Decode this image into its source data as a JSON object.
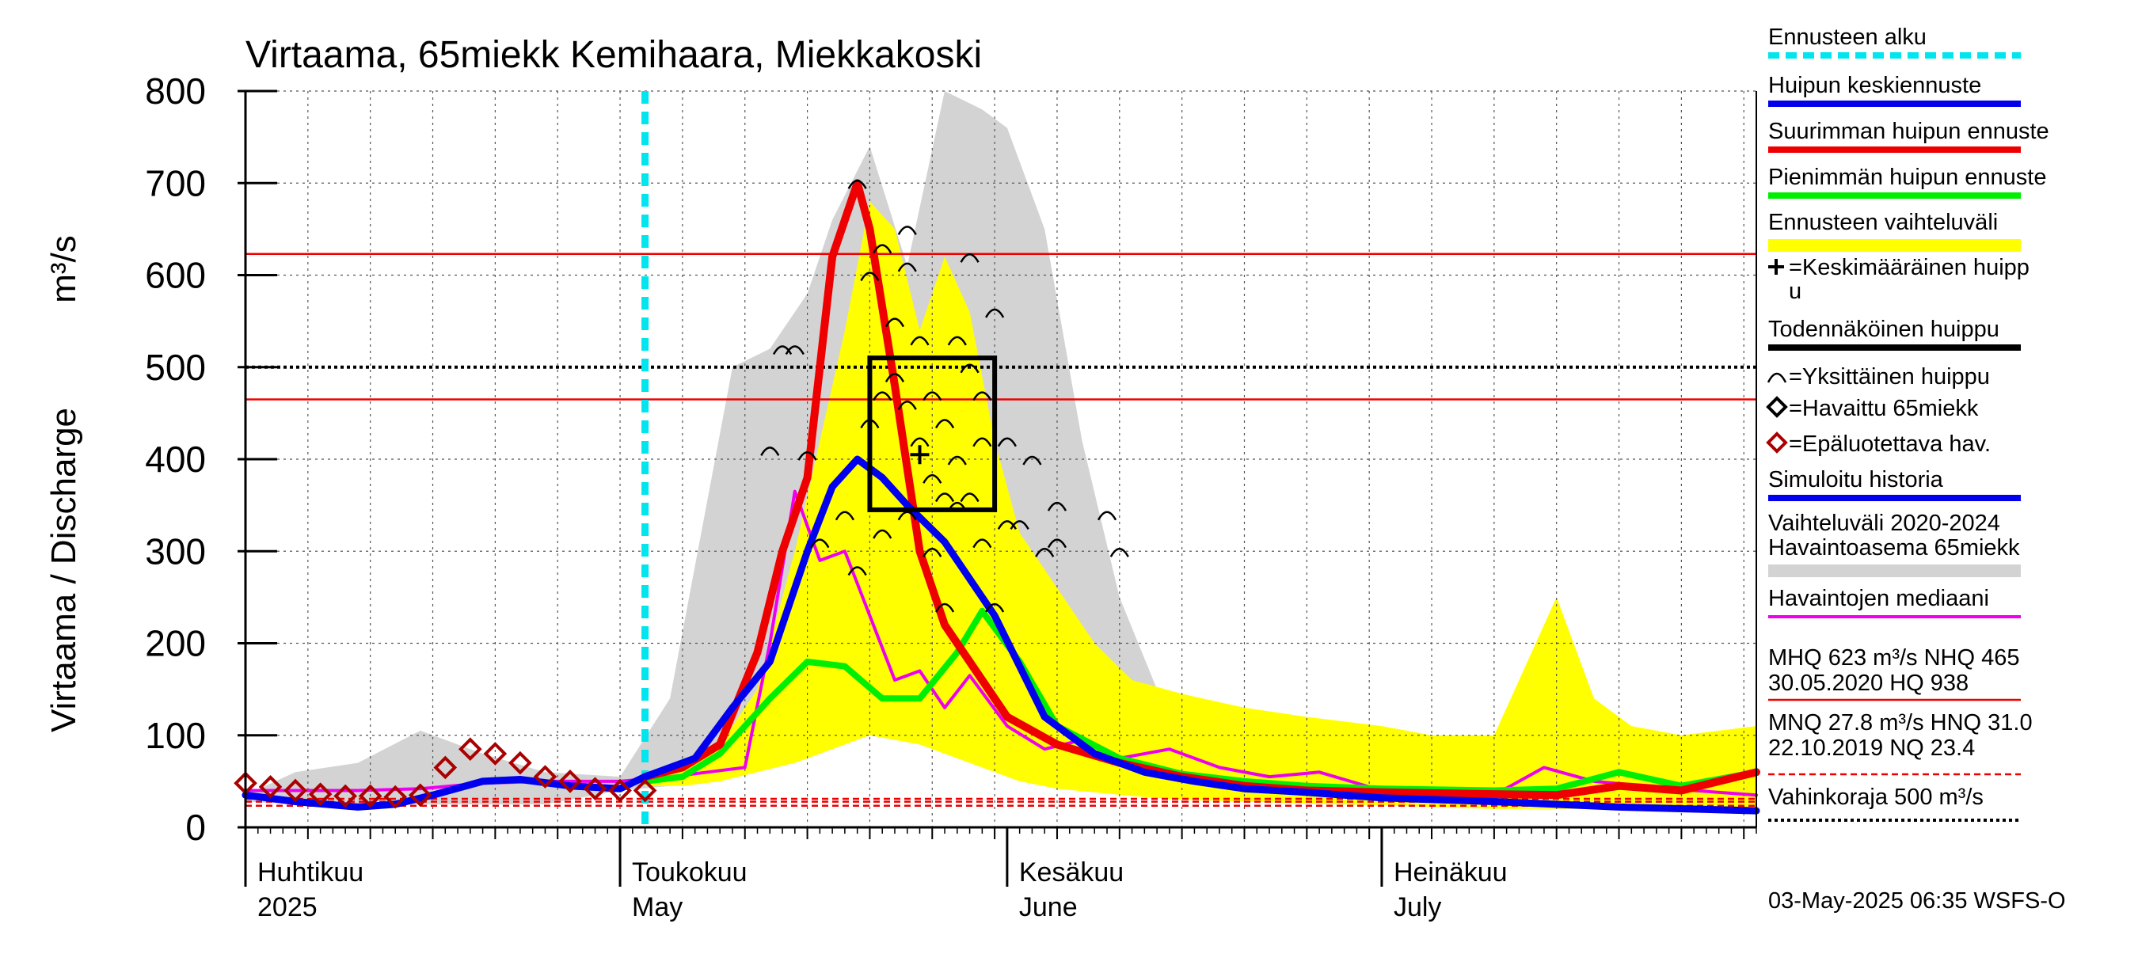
{
  "chart_data": {
    "type": "line",
    "title": "Virtaama, 65miekk Kemihaara, Miekkakoski",
    "ylabel": "Virtaama / Discharge",
    "yunit": "m³/s",
    "ylim": [
      0,
      800
    ],
    "yticks": [
      0,
      100,
      200,
      300,
      400,
      500,
      600,
      700,
      800
    ],
    "xlim": [
      "2025-04-01",
      "2025-07-31"
    ],
    "x_major": [
      {
        "date": "2025-04-01",
        "fi": "Huhtikuu",
        "en": "2025"
      },
      {
        "date": "2025-05-01",
        "fi": "Toukokuu",
        "en": "May"
      },
      {
        "date": "2025-06-01",
        "fi": "Kesäkuu",
        "en": "June"
      },
      {
        "date": "2025-07-01",
        "fi": "Heinäkuu",
        "en": "July"
      }
    ],
    "x_minor_step_days": 5,
    "grid": true,
    "legend_placement": "right",
    "forecast_start": "2025-05-03",
    "colors": {
      "forecast_start": "#00e5ee",
      "mean_peak_forecast": "#0000ee",
      "max_peak_forecast": "#ee0000",
      "min_peak_forecast": "#00ee00",
      "forecast_range": "#ffff00",
      "history_range": "#d3d3d3",
      "median": "#ee00ee",
      "observed": "#000000",
      "unreliable": "#aa0000",
      "reference": "#ee0000",
      "damage_limit": "#000000"
    },
    "reference_lines": [
      {
        "name": "MHQ",
        "value": 623,
        "style": "solid"
      },
      {
        "name": "NHQ",
        "value": 465,
        "style": "solid"
      },
      {
        "name": "Vahinkoraja",
        "value": 500,
        "style": "dotted"
      },
      {
        "name": "HNQ",
        "value": 31.0,
        "style": "dashed"
      },
      {
        "name": "MNQ",
        "value": 27.8,
        "style": "dashed"
      },
      {
        "name": "NQ",
        "value": 23.4,
        "style": "dashed"
      }
    ],
    "history_range": {
      "x": [
        "2025-04-01",
        "2025-04-05",
        "2025-04-10",
        "2025-04-15",
        "2025-04-20",
        "2025-04-25",
        "2025-05-01",
        "2025-05-05",
        "2025-05-10",
        "2025-05-13",
        "2025-05-16",
        "2025-05-18",
        "2025-05-21",
        "2025-05-24",
        "2025-05-27",
        "2025-05-30",
        "2025-06-01",
        "2025-06-04",
        "2025-06-07",
        "2025-06-10",
        "2025-06-13",
        "2025-06-16",
        "2025-06-20",
        "2025-06-25",
        "2025-07-01",
        "2025-07-10",
        "2025-07-20",
        "2025-07-31"
      ],
      "upper": [
        35,
        60,
        70,
        105,
        80,
        60,
        55,
        140,
        500,
        520,
        580,
        660,
        740,
        610,
        800,
        780,
        760,
        650,
        420,
        250,
        150,
        120,
        100,
        90,
        90,
        70,
        70,
        60
      ],
      "lower": [
        28,
        25,
        25,
        25,
        25,
        25,
        40,
        45,
        60,
        80,
        95,
        105,
        100,
        95,
        95,
        85,
        70,
        55,
        45,
        40,
        35,
        30,
        28,
        26,
        24,
        22,
        22,
        20
      ]
    },
    "forecast_range": {
      "x": [
        "2025-05-03",
        "2025-05-06",
        "2025-05-09",
        "2025-05-12",
        "2025-05-15",
        "2025-05-17",
        "2025-05-19",
        "2025-05-21",
        "2025-05-23",
        "2025-05-25",
        "2025-05-27",
        "2025-05-29",
        "2025-05-31",
        "2025-06-02",
        "2025-06-05",
        "2025-06-08",
        "2025-06-11",
        "2025-06-15",
        "2025-06-20",
        "2025-06-25",
        "2025-07-01",
        "2025-07-05",
        "2025-07-10",
        "2025-07-15",
        "2025-07-18",
        "2025-07-21",
        "2025-07-25",
        "2025-07-31"
      ],
      "upper": [
        50,
        65,
        90,
        150,
        300,
        420,
        540,
        680,
        650,
        540,
        620,
        560,
        420,
        320,
        260,
        200,
        160,
        145,
        130,
        120,
        110,
        100,
        100,
        250,
        140,
        110,
        100,
        110
      ],
      "lower": [
        45,
        45,
        50,
        60,
        70,
        80,
        90,
        100,
        95,
        90,
        80,
        70,
        60,
        50,
        42,
        38,
        34,
        30,
        28,
        26,
        24,
        22,
        20,
        20,
        20,
        20,
        18,
        18
      ]
    },
    "series": [
      {
        "key": "mean_peak_forecast",
        "name": "Huipun keskiennuste",
        "x": [
          "2025-04-01",
          "2025-04-05",
          "2025-04-10",
          "2025-04-13",
          "2025-04-16",
          "2025-04-20",
          "2025-04-23",
          "2025-04-27",
          "2025-05-01",
          "2025-05-03",
          "2025-05-07",
          "2025-05-10",
          "2025-05-13",
          "2025-05-16",
          "2025-05-18",
          "2025-05-20",
          "2025-05-22",
          "2025-05-24",
          "2025-05-27",
          "2025-05-31",
          "2025-06-04",
          "2025-06-08",
          "2025-06-12",
          "2025-06-16",
          "2025-06-20",
          "2025-06-25",
          "2025-07-01",
          "2025-07-10",
          "2025-07-20",
          "2025-07-31"
        ],
        "y": [
          35,
          28,
          22,
          25,
          35,
          50,
          52,
          45,
          42,
          55,
          75,
          130,
          180,
          300,
          370,
          400,
          380,
          350,
          310,
          230,
          120,
          80,
          60,
          50,
          42,
          38,
          32,
          28,
          22,
          18
        ]
      },
      {
        "key": "max_peak_forecast",
        "name": "Suurimman huipun ennuste",
        "x": [
          "2025-05-03",
          "2025-05-06",
          "2025-05-09",
          "2025-05-12",
          "2025-05-14",
          "2025-05-16",
          "2025-05-18",
          "2025-05-20",
          "2025-05-21",
          "2025-05-23",
          "2025-05-25",
          "2025-05-27",
          "2025-05-29",
          "2025-06-01",
          "2025-06-05",
          "2025-06-10",
          "2025-06-15",
          "2025-06-20",
          "2025-06-25",
          "2025-07-01",
          "2025-07-10",
          "2025-07-15",
          "2025-07-20",
          "2025-07-25",
          "2025-07-31"
        ],
        "y": [
          55,
          65,
          90,
          190,
          300,
          380,
          620,
          700,
          650,
          480,
          300,
          220,
          180,
          120,
          90,
          70,
          55,
          45,
          40,
          38,
          36,
          35,
          45,
          40,
          60
        ]
      },
      {
        "key": "min_peak_forecast",
        "name": "Pienimmän huipun ennuste",
        "x": [
          "2025-05-03",
          "2025-05-06",
          "2025-05-09",
          "2025-05-13",
          "2025-05-16",
          "2025-05-19",
          "2025-05-22",
          "2025-05-25",
          "2025-05-28",
          "2025-05-30",
          "2025-06-02",
          "2025-06-05",
          "2025-06-10",
          "2025-06-15",
          "2025-06-20",
          "2025-06-25",
          "2025-07-01",
          "2025-07-10",
          "2025-07-15",
          "2025-07-20",
          "2025-07-25",
          "2025-07-31"
        ],
        "y": [
          50,
          55,
          80,
          140,
          180,
          175,
          140,
          140,
          190,
          235,
          180,
          110,
          75,
          58,
          50,
          45,
          42,
          40,
          42,
          60,
          45,
          60
        ]
      },
      {
        "key": "median",
        "name": "Havaintojen mediaani",
        "x": [
          "2025-04-01",
          "2025-04-10",
          "2025-04-15",
          "2025-04-20",
          "2025-04-25",
          "2025-05-01",
          "2025-05-05",
          "2025-05-08",
          "2025-05-11",
          "2025-05-13",
          "2025-05-15",
          "2025-05-17",
          "2025-05-19",
          "2025-05-21",
          "2025-05-23",
          "2025-05-25",
          "2025-05-27",
          "2025-05-29",
          "2025-06-01",
          "2025-06-04",
          "2025-06-07",
          "2025-06-10",
          "2025-06-14",
          "2025-06-18",
          "2025-06-22",
          "2025-06-26",
          "2025-07-01",
          "2025-07-06",
          "2025-07-10",
          "2025-07-14",
          "2025-07-18",
          "2025-07-22",
          "2025-07-26",
          "2025-07-31"
        ],
        "y": [
          40,
          40,
          42,
          48,
          50,
          50,
          55,
          60,
          65,
          200,
          365,
          290,
          300,
          230,
          160,
          170,
          130,
          165,
          110,
          85,
          95,
          75,
          85,
          65,
          55,
          60,
          40,
          35,
          35,
          65,
          50,
          45,
          40,
          35
        ]
      }
    ],
    "observed_unreliable": {
      "name": "Epäluotettava hav.",
      "x": [
        "2025-04-01",
        "2025-04-03",
        "2025-04-05",
        "2025-04-07",
        "2025-04-09",
        "2025-04-11",
        "2025-04-13",
        "2025-04-15",
        "2025-04-17",
        "2025-04-19",
        "2025-04-21",
        "2025-04-23",
        "2025-04-25",
        "2025-04-27",
        "2025-04-29",
        "2025-05-01",
        "2025-05-03"
      ],
      "y": [
        48,
        44,
        40,
        36,
        34,
        34,
        33,
        35,
        65,
        85,
        80,
        70,
        55,
        50,
        42,
        40,
        40
      ]
    },
    "mean_peak": {
      "name": "Keskimääräinen huippu",
      "date": "2025-05-25",
      "value": 405
    },
    "probable_peak": {
      "name": "Todennäköinen huippu",
      "x0": "2025-05-21",
      "x1": "2025-05-31",
      "y0": 345,
      "y1": 510
    },
    "individual_peaks": [
      {
        "date": "2025-05-13",
        "value": 410
      },
      {
        "date": "2025-05-14",
        "value": 520
      },
      {
        "date": "2025-05-15",
        "value": 520
      },
      {
        "date": "2025-05-16",
        "value": 405
      },
      {
        "date": "2025-05-17",
        "value": 310
      },
      {
        "date": "2025-05-19",
        "value": 340
      },
      {
        "date": "2025-05-20",
        "value": 700
      },
      {
        "date": "2025-05-20",
        "value": 280
      },
      {
        "date": "2025-05-21",
        "value": 600
      },
      {
        "date": "2025-05-21",
        "value": 440
      },
      {
        "date": "2025-05-22",
        "value": 630
      },
      {
        "date": "2025-05-22",
        "value": 470
      },
      {
        "date": "2025-05-22",
        "value": 320
      },
      {
        "date": "2025-05-23",
        "value": 550
      },
      {
        "date": "2025-05-23",
        "value": 490
      },
      {
        "date": "2025-05-24",
        "value": 650
      },
      {
        "date": "2025-05-24",
        "value": 610
      },
      {
        "date": "2025-05-24",
        "value": 460
      },
      {
        "date": "2025-05-24",
        "value": 340
      },
      {
        "date": "2025-05-25",
        "value": 530
      },
      {
        "date": "2025-05-25",
        "value": 420
      },
      {
        "date": "2025-05-26",
        "value": 470
      },
      {
        "date": "2025-05-26",
        "value": 380
      },
      {
        "date": "2025-05-26",
        "value": 300
      },
      {
        "date": "2025-05-27",
        "value": 440
      },
      {
        "date": "2025-05-27",
        "value": 360
      },
      {
        "date": "2025-05-27",
        "value": 240
      },
      {
        "date": "2025-05-28",
        "value": 530
      },
      {
        "date": "2025-05-28",
        "value": 400
      },
      {
        "date": "2025-05-28",
        "value": 350
      },
      {
        "date": "2025-05-29",
        "value": 620
      },
      {
        "date": "2025-05-29",
        "value": 500
      },
      {
        "date": "2025-05-29",
        "value": 360
      },
      {
        "date": "2025-05-30",
        "value": 470
      },
      {
        "date": "2025-05-30",
        "value": 420
      },
      {
        "date": "2025-05-30",
        "value": 310
      },
      {
        "date": "2025-05-31",
        "value": 560
      },
      {
        "date": "2025-05-31",
        "value": 240
      },
      {
        "date": "2025-06-01",
        "value": 420
      },
      {
        "date": "2025-06-01",
        "value": 330
      },
      {
        "date": "2025-06-02",
        "value": 330
      },
      {
        "date": "2025-06-03",
        "value": 400
      },
      {
        "date": "2025-06-04",
        "value": 300
      },
      {
        "date": "2025-06-05",
        "value": 350
      },
      {
        "date": "2025-06-05",
        "value": 310
      },
      {
        "date": "2025-06-09",
        "value": 340
      },
      {
        "date": "2025-06-10",
        "value": 300
      }
    ],
    "legend": [
      {
        "key": "forecast_start",
        "label": "Ennusteen alku",
        "symbol": "dashed-line"
      },
      {
        "key": "mean_peak_forecast",
        "label": "Huipun keskiennuste",
        "symbol": "thick-line"
      },
      {
        "key": "max_peak_forecast",
        "label": "Suurimman huipun ennuste",
        "symbol": "thick-line"
      },
      {
        "key": "min_peak_forecast",
        "label": "Pienimmän huipun ennuste",
        "symbol": "thick-line"
      },
      {
        "key": "forecast_range",
        "label": "Ennusteen vaihteluväli",
        "symbol": "band"
      },
      {
        "key": "mean_peak",
        "label": "=Keskimääräinen huipp",
        "label2": "u",
        "symbol": "plus"
      },
      {
        "key": "probable_peak",
        "label": "Todennäköinen huippu",
        "symbol": "thick-line"
      },
      {
        "key": "individual_peaks",
        "label": "=Yksittäinen huippu",
        "symbol": "arc"
      },
      {
        "key": "observed",
        "label": "=Havaittu 65miekk",
        "symbol": "diamond"
      },
      {
        "key": "unreliable",
        "label": "=Epäluotettava hav.",
        "symbol": "diamond"
      },
      {
        "key": "simulated",
        "label": "Simuloitu historia",
        "symbol": "thick-line"
      },
      {
        "key": "history_range",
        "label": "Vaihteluväli 2020-2024",
        "label2": " Havaintoasema 65miekk",
        "symbol": "band"
      },
      {
        "key": "median",
        "label": "Havaintojen mediaani",
        "symbol": "line"
      }
    ],
    "stats": {
      "line1": "MHQ  623 m³/s NHQ  465",
      "line2": "30.05.2020 HQ  938",
      "line3": "MNQ 27.8 m³/s HNQ 31.0",
      "line4": "22.10.2019 NQ 23.4",
      "line5": "Vahinkoraja 500 m³/s"
    },
    "footer": "03-May-2025 06:35 WSFS-O"
  }
}
